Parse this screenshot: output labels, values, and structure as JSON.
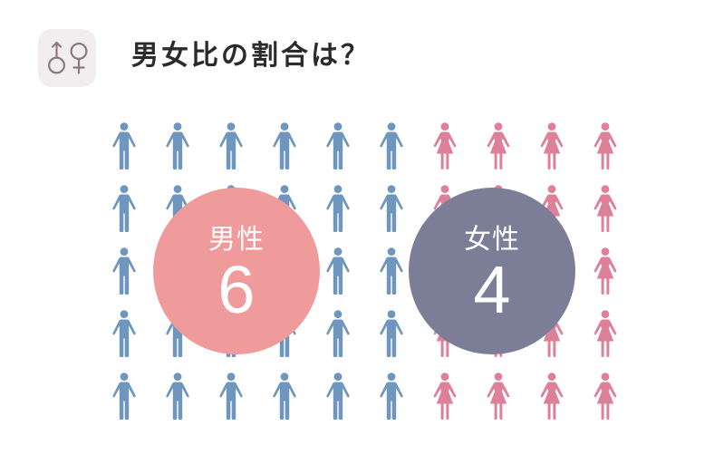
{
  "header": {
    "icon": "male-female-icon",
    "badge_color": "#f2edee",
    "icon_color": "#8c7a82",
    "title_color": "#2b2b2b"
  },
  "chart_data": {
    "type": "pictogram",
    "title": "男女比の割合は？",
    "categories": [
      "男性",
      "女性"
    ],
    "values": [
      6,
      4
    ],
    "icons": [
      "male-figure-icon",
      "female-figure-icon"
    ],
    "icon_colors": [
      "#6f96be",
      "#de8099"
    ],
    "circle_colors": [
      "#f09b9b",
      "#7c7e97"
    ]
  }
}
